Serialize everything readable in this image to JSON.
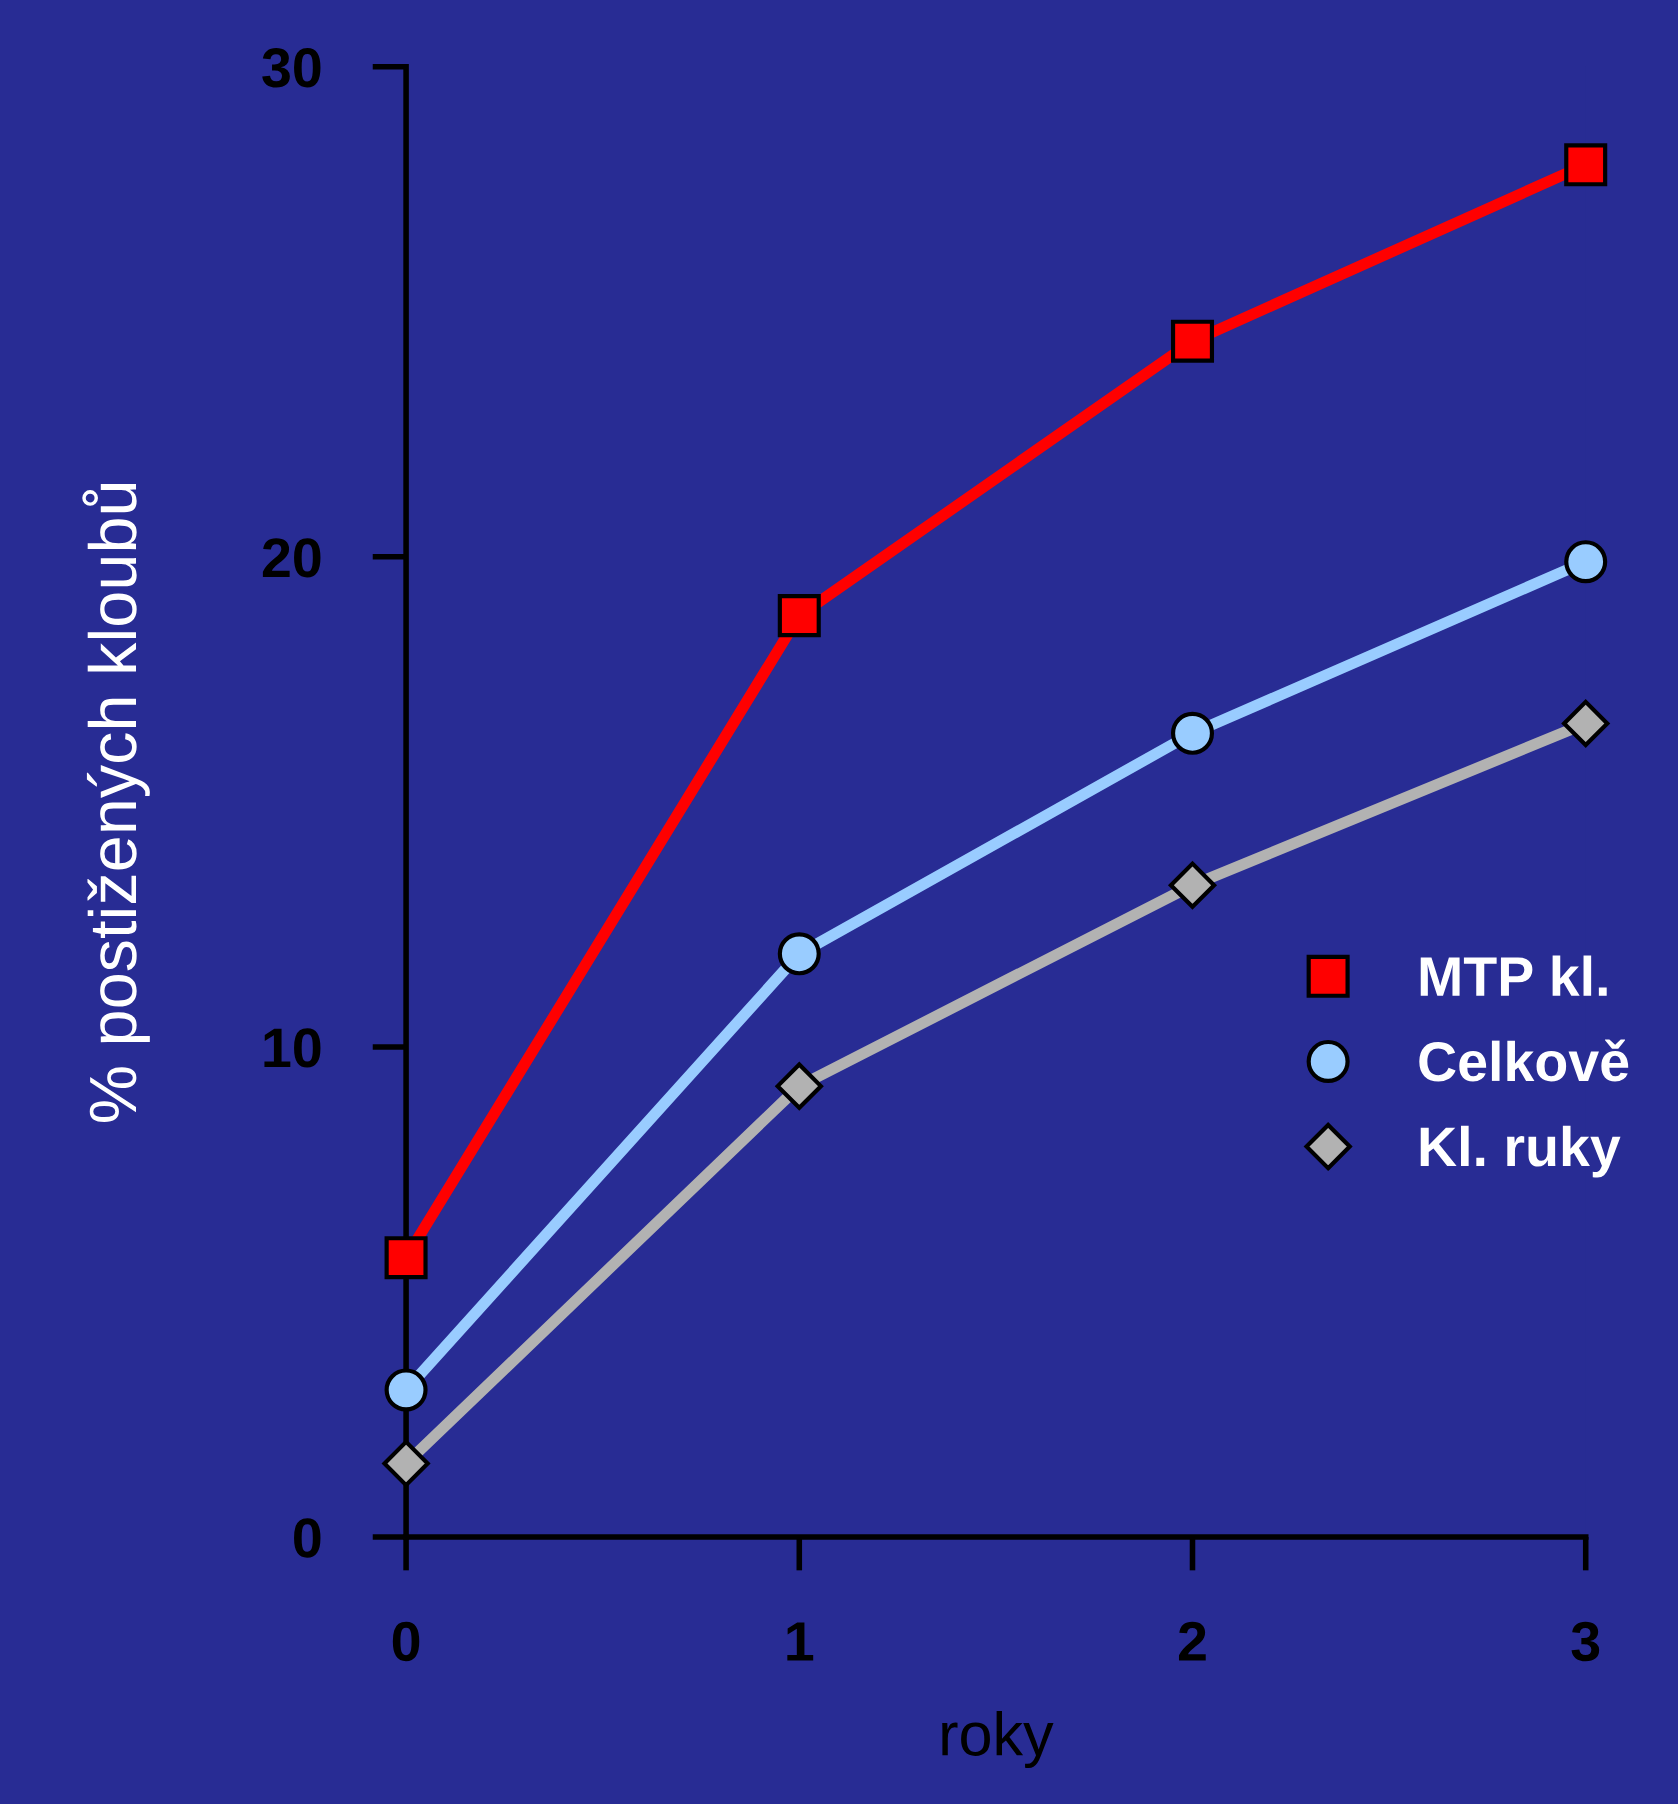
{
  "chart_data": {
    "type": "line",
    "xlabel": "roky",
    "ylabel": "% postižených kloubů",
    "x": [
      0,
      1,
      2,
      3
    ],
    "xlim": [
      0,
      3
    ],
    "xticks": [
      0,
      1,
      2,
      3
    ],
    "ylim": [
      0,
      30
    ],
    "yticks": [
      0,
      10,
      20,
      30
    ],
    "grid": false,
    "legend": "right",
    "line_style": "solid",
    "series": [
      {
        "name": "MTP kl.",
        "color": "#ff0000",
        "marker": "square",
        "values": [
          5.7,
          18.8,
          24.4,
          28.0
        ]
      },
      {
        "name": "Celkově",
        "color": "#99ccff",
        "marker": "circle",
        "values": [
          3.0,
          11.9,
          16.4,
          19.9
        ]
      },
      {
        "name": "Kl. ruky",
        "color": "#b2b2b2",
        "marker": "diamond",
        "values": [
          1.5,
          9.2,
          13.3,
          16.6
        ]
      }
    ]
  }
}
